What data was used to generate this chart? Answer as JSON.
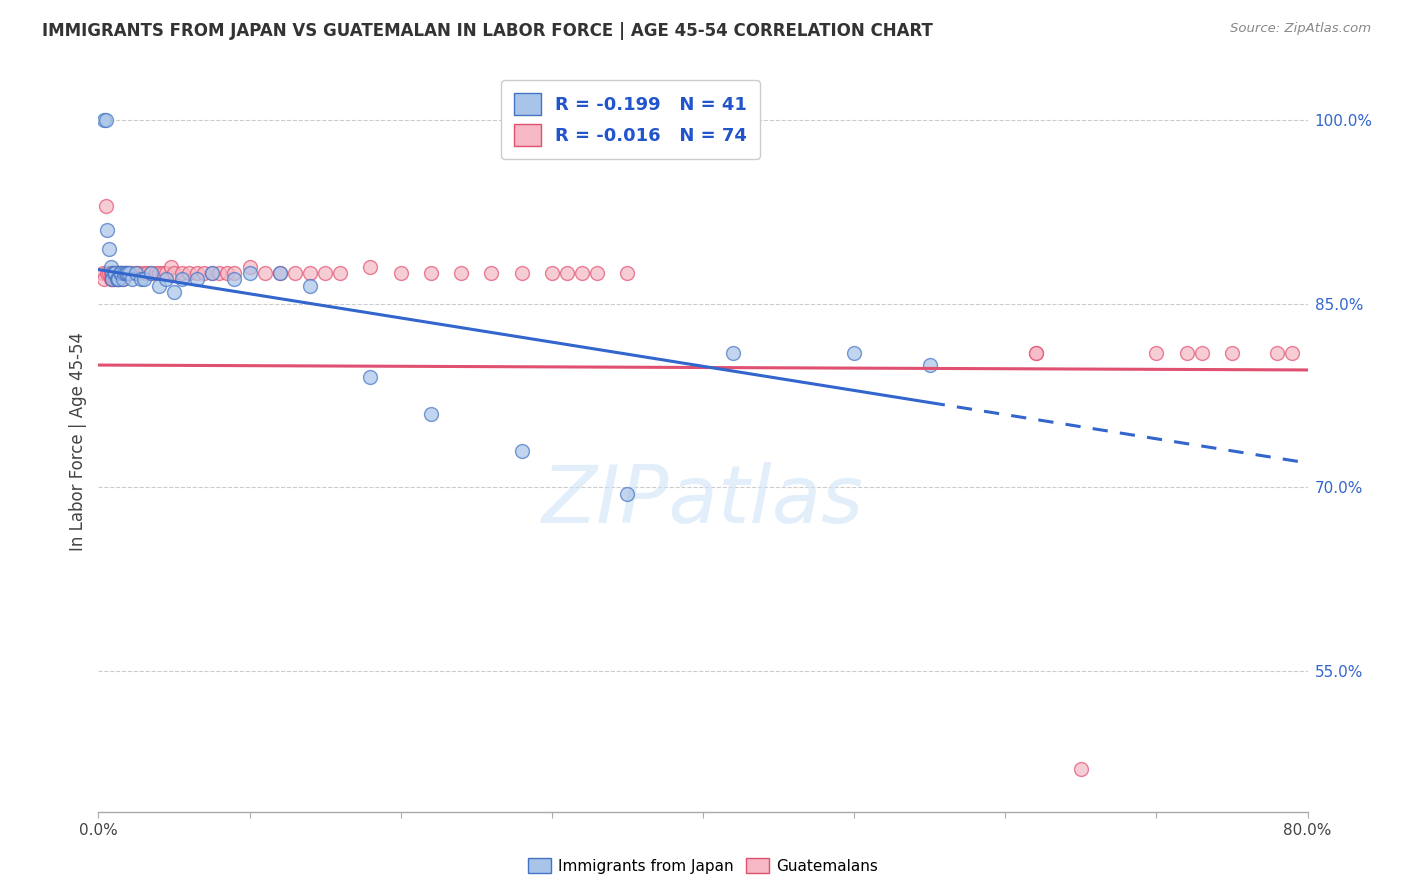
{
  "title": "IMMIGRANTS FROM JAPAN VS GUATEMALAN IN LABOR FORCE | AGE 45-54 CORRELATION CHART",
  "source": "Source: ZipAtlas.com",
  "ylabel": "In Labor Force | Age 45-54",
  "right_ytick_labels": [
    "55.0%",
    "70.0%",
    "85.0%",
    "100.0%"
  ],
  "right_ytick_values": [
    0.55,
    0.7,
    0.85,
    1.0
  ],
  "xlim": [
    0.0,
    0.8
  ],
  "ylim": [
    0.435,
    1.04
  ],
  "xtick_vals": [
    0.0,
    0.1,
    0.2,
    0.3,
    0.4,
    0.5,
    0.6,
    0.7,
    0.8
  ],
  "xtick_labels": [
    "0.0%",
    "",
    "",
    "",
    "",
    "",
    "",
    "",
    "80.0%"
  ],
  "legend_japan_label": "R = -0.199   N = 41",
  "legend_guatemalan_label": "R = -0.016   N = 74",
  "japan_color": "#a8c4e8",
  "guatemalan_color": "#f5b8c4",
  "japan_edge_color": "#4472c4",
  "guatemalan_edge_color": "#e05070",
  "japan_trend_color": "#3366cc",
  "guatemalan_trend_color": "#e05070",
  "watermark": "ZIPatlas",
  "japan_scatter_x": [
    0.004,
    0.005,
    0.006,
    0.007,
    0.008,
    0.009,
    0.009,
    0.01,
    0.011,
    0.012,
    0.013,
    0.013,
    0.014,
    0.015,
    0.016,
    0.017,
    0.018,
    0.019,
    0.02,
    0.022,
    0.025,
    0.028,
    0.03,
    0.035,
    0.04,
    0.045,
    0.05,
    0.055,
    0.065,
    0.075,
    0.09,
    0.1,
    0.12,
    0.14,
    0.18,
    0.22,
    0.28,
    0.35,
    0.42,
    0.5,
    0.55
  ],
  "japan_scatter_y": [
    1.0,
    1.0,
    0.91,
    0.895,
    0.88,
    0.875,
    0.87,
    0.875,
    0.875,
    0.87,
    0.87,
    0.87,
    0.875,
    0.875,
    0.87,
    0.875,
    0.875,
    0.875,
    0.875,
    0.87,
    0.875,
    0.87,
    0.87,
    0.875,
    0.865,
    0.87,
    0.86,
    0.87,
    0.87,
    0.875,
    0.87,
    0.875,
    0.875,
    0.865,
    0.79,
    0.76,
    0.73,
    0.695,
    0.81,
    0.81,
    0.8
  ],
  "guatemalan_scatter_x": [
    0.003,
    0.004,
    0.005,
    0.006,
    0.007,
    0.008,
    0.008,
    0.009,
    0.009,
    0.01,
    0.01,
    0.011,
    0.011,
    0.012,
    0.012,
    0.013,
    0.013,
    0.014,
    0.014,
    0.015,
    0.015,
    0.016,
    0.016,
    0.017,
    0.018,
    0.019,
    0.02,
    0.022,
    0.025,
    0.027,
    0.03,
    0.032,
    0.035,
    0.038,
    0.04,
    0.043,
    0.045,
    0.048,
    0.05,
    0.055,
    0.06,
    0.065,
    0.07,
    0.075,
    0.08,
    0.085,
    0.09,
    0.1,
    0.11,
    0.12,
    0.13,
    0.14,
    0.15,
    0.16,
    0.18,
    0.2,
    0.22,
    0.24,
    0.26,
    0.28,
    0.3,
    0.31,
    0.32,
    0.33,
    0.35,
    0.62,
    0.7,
    0.72,
    0.73,
    0.75,
    0.78,
    0.79,
    0.62,
    0.65
  ],
  "guatemalan_scatter_y": [
    0.875,
    0.87,
    0.93,
    0.875,
    0.875,
    0.875,
    0.87,
    0.87,
    0.875,
    0.875,
    0.87,
    0.875,
    0.87,
    0.875,
    0.875,
    0.875,
    0.87,
    0.875,
    0.87,
    0.875,
    0.875,
    0.875,
    0.87,
    0.875,
    0.875,
    0.875,
    0.875,
    0.875,
    0.875,
    0.875,
    0.875,
    0.875,
    0.875,
    0.875,
    0.875,
    0.875,
    0.875,
    0.88,
    0.875,
    0.875,
    0.875,
    0.875,
    0.875,
    0.875,
    0.875,
    0.875,
    0.875,
    0.88,
    0.875,
    0.875,
    0.875,
    0.875,
    0.875,
    0.875,
    0.88,
    0.875,
    0.875,
    0.875,
    0.875,
    0.875,
    0.875,
    0.875,
    0.875,
    0.875,
    0.875,
    0.81,
    0.81,
    0.81,
    0.81,
    0.81,
    0.81,
    0.81,
    0.81,
    0.47
  ],
  "japan_trend_x0": 0.0,
  "japan_trend_y0": 0.878,
  "japan_trend_x1_solid": 0.55,
  "japan_trend_x1_dash": 0.8,
  "japan_trend_y1": 0.72,
  "guatemalan_trend_x0": 0.0,
  "guatemalan_trend_y0": 0.8,
  "guatemalan_trend_x1": 0.8,
  "guatemalan_trend_y1": 0.796,
  "grid_color": "#cccccc",
  "background_color": "#ffffff",
  "scatter_size": 100,
  "scatter_alpha": 0.7,
  "scatter_linewidth": 1.0
}
